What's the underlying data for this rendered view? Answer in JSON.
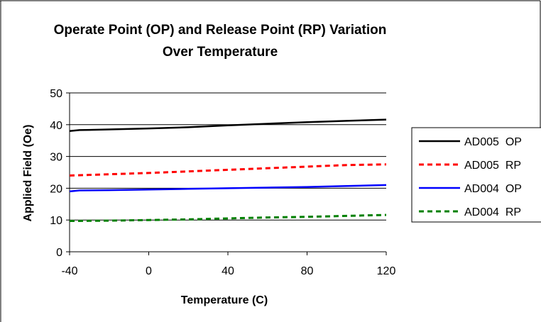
{
  "chart_data": {
    "type": "line",
    "title": "Operate Point (OP) and Release Point (RP) Variation",
    "subtitle": "Over Temperature",
    "xlabel": "Temperature (C)",
    "ylabel": "Applied Field (Oe)",
    "xlim": [
      -40,
      120
    ],
    "ylim": [
      0,
      50
    ],
    "xticks": [
      "-40",
      "0",
      "40",
      "80",
      "120"
    ],
    "yticks": [
      "0",
      "10",
      "20",
      "30",
      "40",
      "50"
    ],
    "grid": "horizontal",
    "legend_position": "right",
    "series": [
      {
        "name": "AD005  OP",
        "color": "#000000",
        "dash": "solid",
        "x": [
          -40,
          -35,
          -20,
          0,
          20,
          40,
          60,
          80,
          100,
          120
        ],
        "y": [
          38,
          38.3,
          38.5,
          38.8,
          39.2,
          39.8,
          40.3,
          40.8,
          41.2,
          41.6
        ]
      },
      {
        "name": "AD005  RP",
        "color": "#ff0000",
        "dash": "dashed",
        "x": [
          -40,
          -20,
          0,
          20,
          40,
          60,
          80,
          100,
          120
        ],
        "y": [
          24,
          24.4,
          24.8,
          25.3,
          25.8,
          26.3,
          26.8,
          27.3,
          27.5
        ]
      },
      {
        "name": "AD004  OP",
        "color": "#0000ff",
        "dash": "solid",
        "x": [
          -40,
          -35,
          -20,
          0,
          20,
          40,
          60,
          80,
          100,
          120
        ],
        "y": [
          19,
          19.3,
          19.4,
          19.6,
          19.8,
          20,
          20.2,
          20.4,
          20.7,
          21
        ]
      },
      {
        "name": "AD004  RP",
        "color": "#008000",
        "dash": "dashed",
        "x": [
          -40,
          -20,
          0,
          20,
          40,
          60,
          80,
          100,
          120
        ],
        "y": [
          9.7,
          9.8,
          10,
          10.2,
          10.5,
          10.8,
          11,
          11.3,
          11.6
        ]
      }
    ]
  }
}
